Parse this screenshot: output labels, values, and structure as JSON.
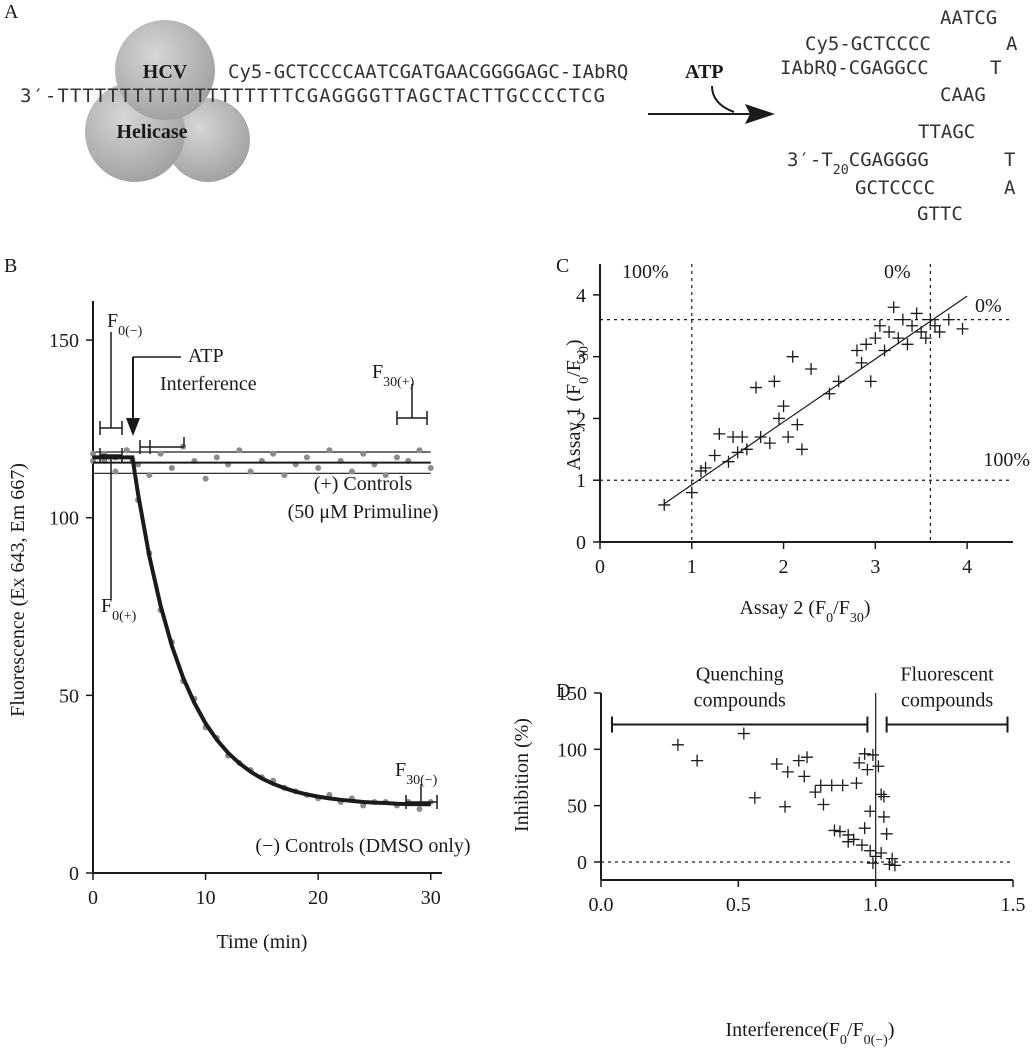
{
  "panel_a": {
    "panel": "A",
    "protein": [
      "HCV",
      "Helicase"
    ],
    "probe": "Cy5-GCTCCCCAATCGATGAACGGGGAGC-IAbRQ",
    "substrate": "3′-TTTTTTTTTTTTTTTTTTTCGAGGGGTTAGCTACTTGCCCCTCG",
    "atp": "ATP",
    "hairpin1": [
      "AATCG",
      "Cy5-GCTCCCC",
      "A",
      "IAbRQ-CGAGGCC",
      "T",
      "CAAG"
    ],
    "hairpin2": [
      "TTAGC",
      [
        {
          "text": "3′-T"
        },
        {
          "text": "20",
          "sub": true
        },
        {
          "text": "CGAGGGG"
        }
      ],
      "T",
      "GCTCCCC",
      "A",
      "GTTC"
    ]
  },
  "chart_data": [
    {
      "type": "line",
      "panel": "B",
      "xlabel": "Time (min)",
      "ylabel": "Fluorescence (Ex 643, Em 667)",
      "xlim": [
        0,
        31
      ],
      "ylim": [
        0,
        161
      ],
      "xticks": [
        0,
        10,
        20,
        30
      ],
      "yticks": [
        0,
        50,
        100,
        150
      ],
      "hlines": [
        112.5,
        118.5
      ],
      "ref_dash": false,
      "series": [
        {
          "mode": "markers",
          "marker": "dot",
          "color": "#8c8c8c",
          "x": [
            0,
            1,
            2,
            3,
            4,
            5,
            6,
            7,
            8,
            9,
            10,
            11,
            12,
            13,
            14,
            15,
            16,
            17,
            18,
            19,
            20,
            21,
            22,
            23,
            24,
            25,
            26,
            27,
            28,
            29,
            30
          ],
          "values": [
            116,
            118,
            113,
            119,
            115,
            112,
            118,
            114,
            120,
            116,
            111,
            117,
            115,
            119,
            113,
            116,
            118,
            112,
            115,
            117,
            114,
            119,
            116,
            113,
            118,
            115,
            112,
            117,
            116,
            119,
            114
          ]
        },
        {
          "mode": "markers",
          "marker": "dot",
          "color": "#8c8c8c",
          "x": [
            0,
            1,
            2,
            3,
            3.5,
            4,
            5,
            6,
            7,
            8,
            9,
            10,
            11,
            12,
            13,
            14,
            15,
            16,
            17,
            18,
            19,
            20,
            21,
            22,
            23,
            24,
            25,
            26,
            27,
            28,
            29,
            30
          ],
          "values": [
            118,
            116,
            117,
            119,
            116,
            105,
            90,
            74,
            65,
            54,
            49,
            41,
            38,
            33,
            31,
            29,
            27,
            26,
            24,
            23,
            22,
            21,
            22,
            20,
            21,
            19,
            20,
            20,
            19,
            20,
            18,
            20
          ]
        },
        {
          "mode": "line",
          "color": "#1a1a1a",
          "width": 2,
          "x": [
            0,
            30
          ],
          "values": [
            115.5,
            115.5
          ]
        },
        {
          "mode": "line",
          "color": "#1a1a1a",
          "width": 4,
          "x": [
            0,
            1,
            2,
            3,
            3.5,
            4,
            5,
            6,
            7,
            8,
            9,
            10,
            11,
            12,
            13,
            14,
            15,
            16,
            17,
            18,
            19,
            20,
            21,
            22,
            23,
            24,
            25,
            26,
            27,
            28,
            29,
            30
          ],
          "values": [
            117,
            117,
            117,
            117,
            117,
            106.7,
            89.2,
            75.3,
            64,
            55,
            47.9,
            42.1,
            37.5,
            33.8,
            30.9,
            28.5,
            26.6,
            25.1,
            23.9,
            22.9,
            22.1,
            21.5,
            21,
            20.6,
            20.3,
            20,
            19.8,
            19.7,
            19.5,
            19.4,
            19.4,
            19.3
          ]
        }
      ],
      "annotations": [
        [
          {
            "text": "F"
          },
          {
            "text": "0(−)",
            "sub": true
          }
        ],
        [
          {
            "text": "ATP"
          }
        ],
        [
          {
            "text": "Interference"
          }
        ],
        [
          {
            "text": "F"
          },
          {
            "text": "30(+)",
            "sub": true
          }
        ],
        [
          {
            "text": "(+) Controls"
          }
        ],
        [
          {
            "text": "(50 μM Primuline)"
          }
        ],
        [
          {
            "text": "F"
          },
          {
            "text": "0(+)",
            "sub": true
          }
        ],
        [
          {
            "text": "F"
          },
          {
            "text": "30(−)",
            "sub": true
          }
        ],
        [
          {
            "text": "(−) Controls (DMSO only)"
          }
        ]
      ]
    },
    {
      "type": "scatter",
      "panel": "C",
      "xlabel": [
        {
          "text": "Assay 2 (F"
        },
        {
          "text": "0",
          "sub": true
        },
        {
          "text": "/F"
        },
        {
          "text": "30",
          "sub": true
        },
        {
          "text": ")"
        }
      ],
      "ylabel": [
        {
          "text": "Assay 1 (F"
        },
        {
          "text": "0",
          "sub": true
        },
        {
          "text": "/F"
        },
        {
          "text": "30",
          "sub": true
        },
        {
          "text": ")"
        }
      ],
      "xlim": [
        0,
        4.5
      ],
      "ylim": [
        0,
        4.5
      ],
      "xticks": [
        0,
        1,
        2,
        3,
        4
      ],
      "yticks": [
        0,
        1,
        2,
        3,
        4
      ],
      "hlines": [
        1,
        3.6
      ],
      "vlines": [
        1,
        3.6
      ],
      "ref_dash": true,
      "series": [
        {
          "mode": "markers",
          "marker": "plus",
          "color": "#1a1a1a",
          "x": [
            0.7,
            1,
            1.1,
            1.15,
            1.25,
            1.3,
            1.4,
            1.45,
            1.5,
            1.55,
            1.6,
            1.7,
            1.75,
            1.85,
            1.9,
            1.95,
            2,
            2.05,
            2.1,
            2.15,
            2.2,
            2.3,
            2.5,
            2.6,
            2.8,
            2.85,
            2.9,
            2.95,
            3,
            3.05,
            3.1,
            3.15,
            3.2,
            3.25,
            3.3,
            3.35,
            3.4,
            3.45,
            3.5,
            3.55,
            3.6,
            3.65,
            3.7,
            3.8,
            3.95
          ],
          "values": [
            0.6,
            0.8,
            1.15,
            1.2,
            1.4,
            1.75,
            1.3,
            1.7,
            1.45,
            1.7,
            1.5,
            2.5,
            1.7,
            1.6,
            2.6,
            2,
            2.2,
            1.7,
            3,
            1.9,
            1.5,
            2.8,
            2.4,
            2.6,
            3.1,
            2.9,
            3.2,
            2.6,
            3.3,
            3.5,
            3.1,
            3.4,
            3.8,
            3.3,
            3.6,
            3.2,
            3.5,
            3.7,
            3.4,
            3.3,
            3.6,
            3.5,
            3.4,
            3.6,
            3.45
          ]
        },
        {
          "mode": "line",
          "color": "#1a1a1a",
          "width": 1.2,
          "x": [
            0.7,
            4
          ],
          "values": [
            0.62,
            3.98
          ]
        }
      ],
      "annotations": [
        [
          {
            "text": "100%"
          }
        ],
        [
          {
            "text": "0%"
          }
        ],
        [
          {
            "text": "0%"
          }
        ],
        [
          {
            "text": "100%"
          }
        ]
      ]
    },
    {
      "type": "scatter",
      "panel": "D",
      "xlabel": [
        {
          "text": "Interference(F"
        },
        {
          "text": "0",
          "sub": true
        },
        {
          "text": "/F"
        },
        {
          "text": "0(−)",
          "sub": true
        },
        {
          "text": ")"
        }
      ],
      "ylabel": "Inhibition (%)",
      "xlim": [
        0,
        1.5
      ],
      "ylim": [
        -16,
        150
      ],
      "xticks": [
        {
          "value": 0,
          "label": "0.0"
        },
        {
          "value": 0.5,
          "label": "0.5"
        },
        {
          "value": 1,
          "label": "1.0"
        },
        {
          "value": 1.5,
          "label": "1.5"
        }
      ],
      "yticks": [
        0,
        50,
        100,
        150
      ],
      "hlines": [
        0
      ],
      "vlines": [
        1
      ],
      "ref_dash": true,
      "brackets": [
        {
          "label": [
            "Quenching",
            "compounds"
          ],
          "x": [
            0.04,
            0.97
          ],
          "y": 122
        },
        {
          "label": [
            "Fluorescent",
            "compounds"
          ],
          "x": [
            1.04,
            1.48
          ],
          "y": 122
        }
      ],
      "series": [
        {
          "mode": "markers",
          "marker": "plus",
          "color": "#1a1a1a",
          "x": [
            0.28,
            0.35,
            0.52,
            0.56,
            0.64,
            0.67,
            0.68,
            0.72,
            0.74,
            0.75,
            0.78,
            0.8,
            0.81,
            0.84,
            0.87,
            0.88,
            0.9,
            0.92,
            0.93,
            0.94,
            0.95,
            0.96,
            0.97,
            0.98,
            0.99,
            1,
            1.01,
            1.02,
            1.03,
            1.04,
            1.05,
            1.06,
            1.07,
            0.96,
            0.99,
            1.02,
            1.03,
            0.85,
            0.9,
            0.98
          ],
          "values": [
            104,
            90,
            114,
            57,
            87,
            49,
            80,
            90,
            76,
            93,
            62,
            68,
            51,
            68,
            27,
            68,
            24,
            20,
            70,
            88,
            15,
            96,
            82,
            10,
            95,
            5,
            85,
            60,
            40,
            25,
            -2,
            3,
            -3,
            30,
            -1,
            8,
            58,
            28,
            18,
            45
          ]
        }
      ]
    }
  ]
}
